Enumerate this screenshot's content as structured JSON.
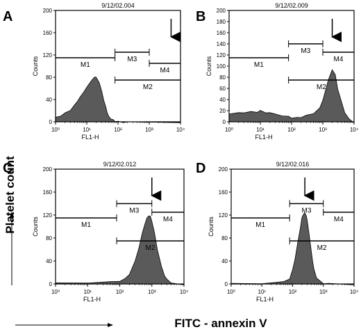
{
  "figure": {
    "y_axis_label": "Platelet count",
    "x_axis_label": "FITC - annexin V"
  },
  "chart_data": [
    {
      "type": "area",
      "panel": "A",
      "title": "9/12/02.004",
      "xlabel": "FL1-H",
      "ylabel": "Counts",
      "xscale": "log",
      "xlim": [
        1,
        10000
      ],
      "ylim": [
        0,
        200
      ],
      "x_ticks": [
        "10⁰",
        "10¹",
        "10²",
        "10³",
        "10⁴"
      ],
      "y_ticks": [
        "0",
        "40",
        "80",
        "120",
        "160",
        "200"
      ],
      "series": [
        {
          "x": [
            1,
            1.5,
            2,
            3,
            4,
            5,
            6,
            8,
            10,
            12,
            15,
            18,
            20,
            25,
            30,
            35,
            40,
            45,
            50,
            60,
            70,
            80,
            100,
            150,
            200,
            10000
          ],
          "y": [
            8,
            12,
            16,
            22,
            30,
            38,
            44,
            55,
            62,
            70,
            76,
            82,
            80,
            72,
            55,
            40,
            28,
            18,
            10,
            6,
            4,
            2,
            1,
            0,
            0,
            0
          ]
        }
      ],
      "markers": [
        {
          "label": "M1",
          "range": [
            1,
            80
          ],
          "level": 115
        },
        {
          "label": "M3",
          "range": [
            80,
            1000
          ],
          "level": 125
        },
        {
          "label": "M4",
          "range": [
            1000,
            10000
          ],
          "level": 105
        },
        {
          "label": "M2",
          "range": [
            80,
            10000
          ],
          "level": 75
        }
      ],
      "arrow_x": 5000
    },
    {
      "type": "area",
      "panel": "B",
      "title": "9/12/02.009",
      "xlabel": "FL1-H",
      "ylabel": "Counts",
      "xscale": "log",
      "xlim": [
        1,
        10000
      ],
      "ylim": [
        0,
        200
      ],
      "x_ticks": [
        "10⁰",
        "10¹",
        "10²",
        "10³",
        "10⁴"
      ],
      "y_ticks": [
        "0",
        "20",
        "40",
        "60",
        "80",
        "100",
        "120",
        "140",
        "160",
        "180",
        "200"
      ],
      "series": [
        {
          "x": [
            1,
            2,
            3,
            5,
            8,
            10,
            15,
            20,
            30,
            50,
            80,
            100,
            150,
            200,
            300,
            500,
            800,
            1000,
            1500,
            2000,
            2500,
            3000,
            4000,
            5000,
            7000,
            10000
          ],
          "y": [
            14,
            18,
            16,
            20,
            17,
            22,
            16,
            18,
            14,
            12,
            10,
            8,
            8,
            9,
            12,
            16,
            25,
            40,
            75,
            95,
            85,
            60,
            35,
            18,
            5,
            0
          ]
        }
      ],
      "markers": [
        {
          "label": "M1",
          "range": [
            1,
            80
          ],
          "level": 115
        },
        {
          "label": "M3",
          "range": [
            80,
            1000
          ],
          "level": 140
        },
        {
          "label": "M4",
          "range": [
            1000,
            10000
          ],
          "level": 125
        },
        {
          "label": "M2",
          "range": [
            80,
            10000
          ],
          "level": 75
        }
      ],
      "arrow_x": 2000
    },
    {
      "type": "area",
      "panel": "C",
      "title": "9/12/02.012",
      "xlabel": "FL1-H",
      "ylabel": "Counts",
      "xscale": "log",
      "xlim": [
        1,
        10000
      ],
      "ylim": [
        0,
        200
      ],
      "x_ticks": [
        "10⁰",
        "10¹",
        "10²",
        "10³",
        "10⁴"
      ],
      "y_ticks": [
        "0",
        "40",
        "80",
        "120",
        "160",
        "200"
      ],
      "series": [
        {
          "x": [
            1,
            10,
            50,
            100,
            150,
            200,
            300,
            400,
            500,
            600,
            700,
            800,
            900,
            1000,
            1200,
            1500,
            2000,
            2500,
            3000,
            4000,
            5000,
            10000
          ],
          "y": [
            2,
            3,
            4,
            6,
            10,
            18,
            40,
            65,
            88,
            105,
            115,
            120,
            118,
            110,
            90,
            60,
            30,
            15,
            8,
            3,
            1,
            0
          ]
        }
      ],
      "markers": [
        {
          "label": "M1",
          "range": [
            1,
            80
          ],
          "level": 115
        },
        {
          "label": "M3",
          "range": [
            80,
            1000
          ],
          "level": 140
        },
        {
          "label": "M4",
          "range": [
            1000,
            10000
          ],
          "level": 125
        },
        {
          "label": "M2",
          "range": [
            80,
            10000
          ],
          "level": 75
        }
      ],
      "arrow_x": 1000
    },
    {
      "type": "area",
      "panel": "D",
      "title": "9/12/02.016",
      "xlabel": "FL1-H",
      "ylabel": "Counts",
      "xscale": "log",
      "xlim": [
        1,
        10000
      ],
      "ylim": [
        0,
        200
      ],
      "x_ticks": [
        "10⁰",
        "10¹",
        "10²",
        "10³",
        "10⁴"
      ],
      "y_ticks": [
        "0",
        "40",
        "80",
        "120",
        "160",
        "200"
      ],
      "series": [
        {
          "x": [
            1,
            10,
            50,
            80,
            100,
            120,
            150,
            180,
            200,
            220,
            250,
            280,
            300,
            350,
            400,
            450,
            500,
            600,
            800,
            1000,
            1500,
            10000
          ],
          "y": [
            1,
            2,
            4,
            10,
            25,
            45,
            75,
            100,
            115,
            122,
            124,
            120,
            110,
            85,
            60,
            40,
            25,
            12,
            5,
            2,
            1,
            0
          ]
        }
      ],
      "markers": [
        {
          "label": "M1",
          "range": [
            1,
            80
          ],
          "level": 115
        },
        {
          "label": "M3",
          "range": [
            80,
            1000
          ],
          "level": 140
        },
        {
          "label": "M4",
          "range": [
            1000,
            10000
          ],
          "level": 125
        },
        {
          "label": "M2",
          "range": [
            80,
            10000
          ],
          "level": 75
        }
      ],
      "arrow_x": 250
    }
  ]
}
